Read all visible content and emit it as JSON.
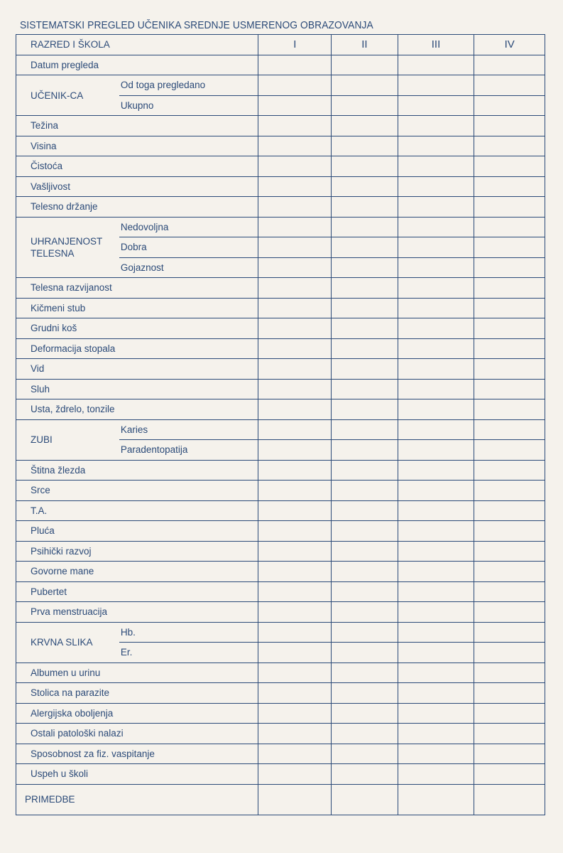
{
  "title": "SISTEMATSKI PREGLED UČENIKA SREDNJE USMERENOG OBRAZOVANJA",
  "header": {
    "label": "RAZRED I ŠKOLA",
    "columns": [
      "I",
      "II",
      "III",
      "IV"
    ]
  },
  "rows": [
    {
      "label": "Datum pregleda"
    },
    {
      "label": "UČENIK-CA",
      "sub": [
        "Od toga pregledano",
        "Ukupno"
      ]
    },
    {
      "label": "Težina"
    },
    {
      "label": "Visina"
    },
    {
      "label": "Čistoća"
    },
    {
      "label": "Vašljivost"
    },
    {
      "label": "Telesno držanje"
    },
    {
      "label": "UHRANJENOST TELESNA",
      "sub": [
        "Nedovoljna",
        "Dobra",
        "Gojaznost"
      ]
    },
    {
      "label": "Telesna razvijanost"
    },
    {
      "label": "Kičmeni stub"
    },
    {
      "label": "Grudni koš"
    },
    {
      "label": "Deformacija stopala"
    },
    {
      "label": "Vid"
    },
    {
      "label": "Sluh"
    },
    {
      "label": "Usta, ždrelo, tonzile"
    },
    {
      "label": "ZUBI",
      "sub": [
        "Karies",
        "Paradentopatija"
      ]
    },
    {
      "label": "Štitna žlezda"
    },
    {
      "label": "Srce"
    },
    {
      "label": "T.A."
    },
    {
      "label": "Pluća"
    },
    {
      "label": "Psihički razvoj"
    },
    {
      "label": "Govorne mane"
    },
    {
      "label": "Pubertet"
    },
    {
      "label": "Prva menstruacija"
    },
    {
      "label": "KRVNA SLIKA",
      "sub": [
        "Hb.",
        "Er."
      ]
    },
    {
      "label": "Albumen u urinu"
    },
    {
      "label": "Stolica na parazite"
    },
    {
      "label": "Alergijska oboljenja"
    },
    {
      "label": "Ostali patološki nalazi"
    },
    {
      "label": "Sposobnost za fiz. vaspitanje"
    },
    {
      "label": "Uspeh u školi"
    },
    {
      "label": "PRIMEDBE"
    }
  ]
}
